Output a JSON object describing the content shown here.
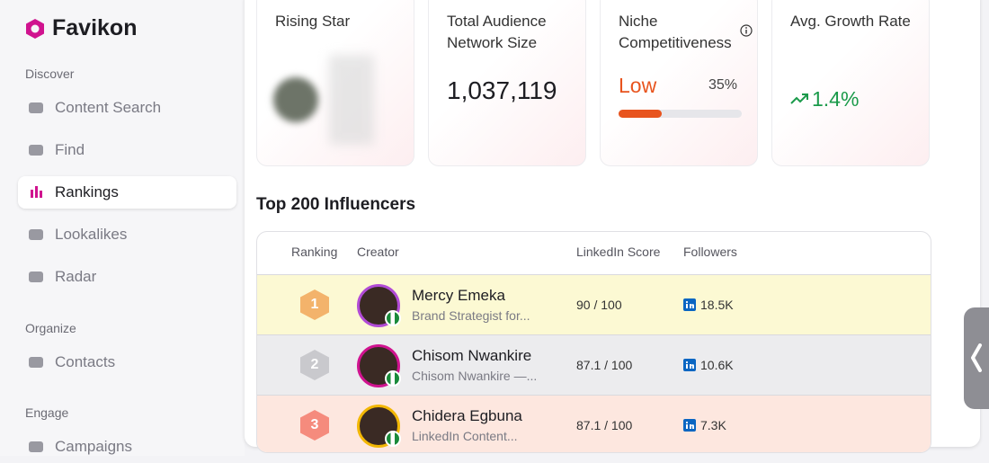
{
  "brand": "Favikon",
  "sidebar": {
    "sections": [
      {
        "title": "Discover",
        "items": [
          "Content Search",
          "Find",
          "Rankings",
          "Lookalikes",
          "Radar"
        ]
      },
      {
        "title": "Organize",
        "items": [
          "Contacts"
        ]
      },
      {
        "title": "Engage",
        "items": [
          "Campaigns"
        ]
      }
    ]
  },
  "cards": {
    "rising_star": {
      "title": "Rising Star"
    },
    "audience": {
      "title": "Total Audience Network Size",
      "value": "1,037,119"
    },
    "niche": {
      "title": "Niche Competitiveness",
      "level": "Low",
      "percent": {
        "value": 35,
        "label": "35%"
      }
    },
    "growth": {
      "title": "Avg. Growth Rate",
      "value": "1.4%"
    }
  },
  "table": {
    "title": "Top 200 Influencers",
    "columns": [
      "Ranking",
      "Creator",
      "LinkedIn Score",
      "Followers"
    ],
    "rows": [
      {
        "rank": "1",
        "name": "Mercy Emeka",
        "bio": "Brand Strategist for...",
        "score": "90 / 100",
        "followers": "18.5K"
      },
      {
        "rank": "2",
        "name": "Chisom Nwankire",
        "bio": "Chisom Nwankire —...",
        "score": "87.1 / 100",
        "followers": "10.6K"
      },
      {
        "rank": "3",
        "name": "Chidera Egbuna",
        "bio": "LinkedIn Content...",
        "score": "87.1 / 100",
        "followers": "7.3K"
      }
    ]
  }
}
